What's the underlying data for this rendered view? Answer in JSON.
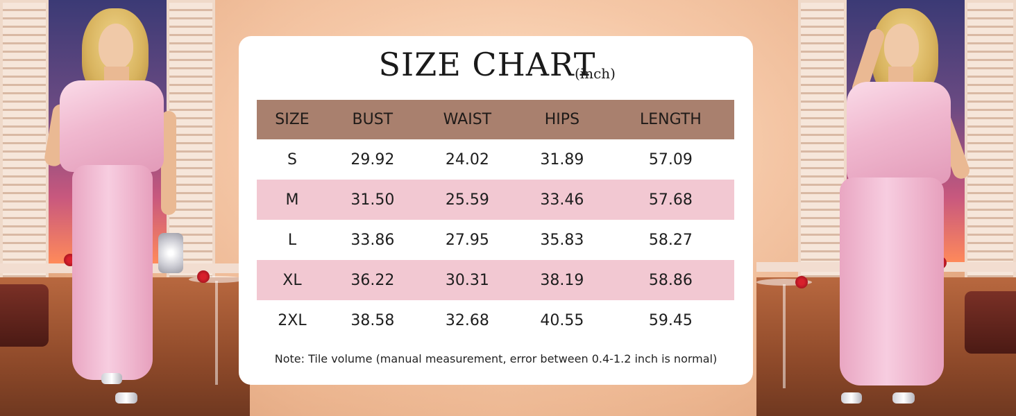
{
  "title": {
    "main": "SIZE CHART",
    "unit": "(inch)"
  },
  "table": {
    "headers": [
      "SIZE",
      "BUST",
      "WAIST",
      "HIPS",
      "LENGTH"
    ],
    "rows": [
      [
        "S",
        "29.92",
        "24.02",
        "31.89",
        "57.09"
      ],
      [
        "M",
        "31.50",
        "25.59",
        "33.46",
        "57.68"
      ],
      [
        "L",
        "33.86",
        "27.95",
        "35.83",
        "58.27"
      ],
      [
        "XL",
        "36.22",
        "30.31",
        "38.19",
        "58.86"
      ],
      [
        "2XL",
        "38.58",
        "32.68",
        "40.55",
        "59.45"
      ]
    ]
  },
  "note": "Note: Tile volume (manual measurement, error between 0.4-1.2 inch is normal)",
  "colors": {
    "header_bg": "#a9806e",
    "stripe_bg": "#f2c8d2",
    "card_bg": "#ffffff",
    "outfit_pink": "#f0b8cf"
  }
}
